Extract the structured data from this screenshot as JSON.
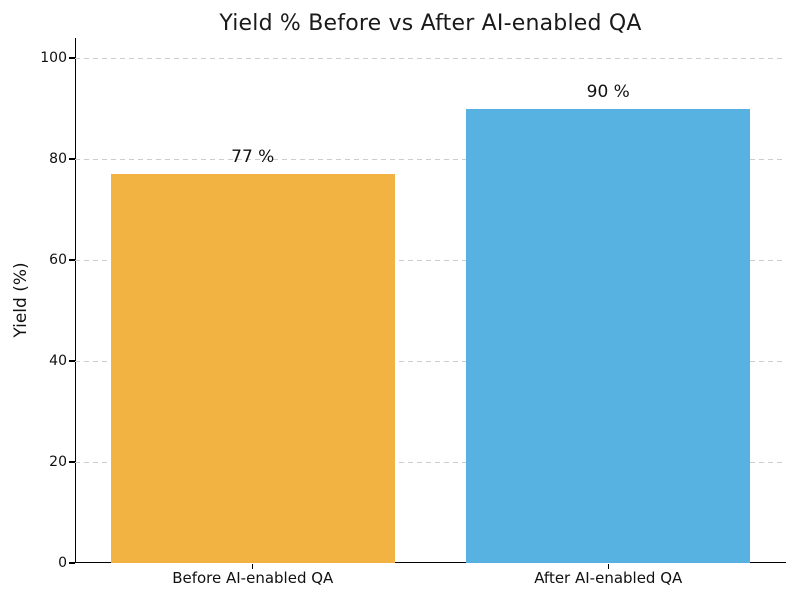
{
  "chart_data": {
    "type": "bar",
    "title": "Yield % Before vs After AI-enabled QA",
    "ylabel": "Yield (%)",
    "xlabel": "",
    "categories": [
      "Before AI-enabled QA",
      "After AI-enabled QA"
    ],
    "values": [
      77,
      90
    ],
    "value_labels": [
      "77 %",
      "90 %"
    ],
    "bar_colors": [
      "#F2B343",
      "#57B1E1"
    ],
    "yticks": [
      0,
      20,
      40,
      60,
      80,
      100
    ],
    "ylim": [
      0,
      104
    ],
    "grid": "horizontal dashed",
    "grid_color": "#CDCDCD",
    "legend": "none",
    "background_color": "#FFFFFF",
    "title_color": "#1A1A1A"
  }
}
